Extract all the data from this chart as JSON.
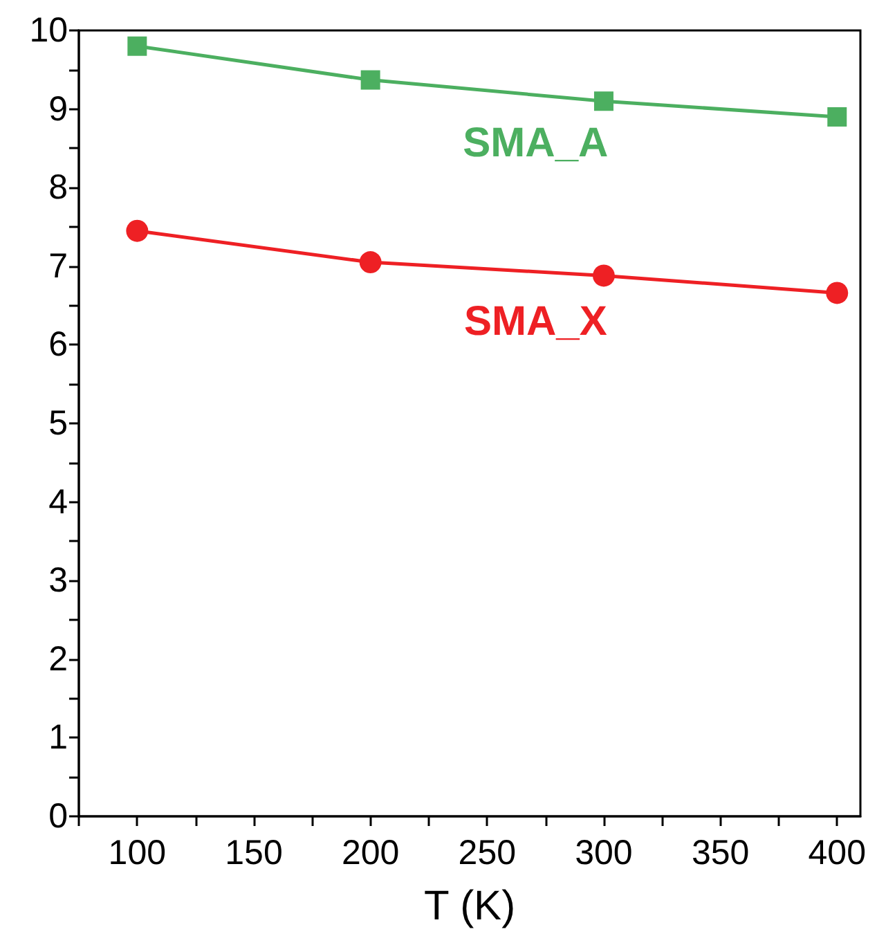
{
  "chart_data": {
    "type": "line",
    "xlabel": "T (K)",
    "x": [
      100,
      200,
      300,
      400
    ],
    "series": [
      {
        "name": "SMA_A",
        "color": "#4caf60",
        "values": [
          9.8,
          9.37,
          9.1,
          8.9
        ],
        "marker": "square"
      },
      {
        "name": "SMA_X",
        "color": "#ee2024",
        "values": [
          7.45,
          7.05,
          6.88,
          6.66
        ],
        "marker": "circle"
      }
    ],
    "xlim": [
      75,
      410
    ],
    "xticks": [
      {
        "value": 75,
        "label": null
      },
      100,
      {
        "value": 125,
        "label": null
      },
      150,
      {
        "value": 175,
        "label": null
      },
      200,
      {
        "value": 225,
        "label": null
      },
      250,
      {
        "value": 275,
        "label": null
      },
      300,
      {
        "value": 325,
        "label": null
      },
      350,
      {
        "value": 375,
        "label": null
      },
      400
    ],
    "ylim": [
      0,
      10
    ],
    "yticks": [
      0,
      {
        "value": 0.5,
        "label": null
      },
      1,
      {
        "value": 1.5,
        "label": null
      },
      2,
      {
        "value": 2.5,
        "label": null
      },
      3,
      {
        "value": 3.5,
        "label": null
      },
      4,
      {
        "value": 4.5,
        "label": null
      },
      5,
      {
        "value": 5.5,
        "label": null
      },
      6,
      {
        "value": 6.5,
        "label": null
      },
      7,
      {
        "value": 7.5,
        "label": null
      },
      8,
      {
        "value": 8.5,
        "label": null
      },
      9,
      {
        "value": 9.5,
        "label": null
      },
      10
    ],
    "grid": false,
    "legend": false
  }
}
